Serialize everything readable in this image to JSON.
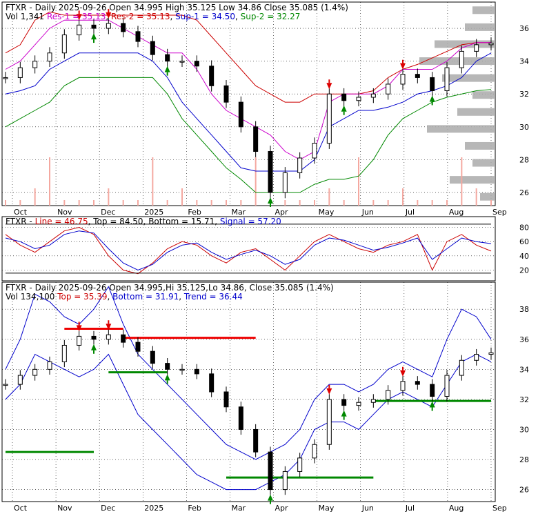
{
  "header": {
    "main_line1": {
      "ticker": "FTXR",
      "desc": "Daily 2025-09-26 Open 34.995  High 35.125  Low 34.86  Close 35.085 (1.4%)"
    },
    "main_line2": {
      "vol": "Vol 1,341",
      "res1": "Res-1 = 35.13",
      "res2": "Res-2 = 35.13",
      "sup1": "Sup-1 = 34.50",
      "sup2": "Sup-2 = 32.27"
    },
    "osc_line": {
      "ticker": "FTXR",
      "line": "Line = 46.75",
      "top": "Top = 84.50",
      "bottom": "Bottom = 15.71",
      "signal": "Signal = 57.20"
    },
    "bot_line1": {
      "ticker": "FTXR",
      "desc": "Daily 2025-09-26 Open 34.995,Hi 35.125,Lo 34.86, Close 35.085 (1.4%)"
    },
    "bot_line2": {
      "vol": "Vol 134,100",
      "top": "Top = 35.39",
      "bottom": "Bottom = 31.91",
      "trend": "Trend = 36.44"
    }
  },
  "colors": {
    "res1": "#cc00cc",
    "res2": "#cc0000",
    "sup1": "#0000cc",
    "sup2": "#008800",
    "line": "#cc0000",
    "signal": "#0000cc",
    "up_arrow": "#008800",
    "down_arrow": "#dd0000",
    "volume": "#f4a8a0",
    "profile": "#aaaaaa",
    "grid": "#000000"
  },
  "chart_data": [
    {
      "type": "candlestick",
      "panel": "price",
      "title": "FTXR - Daily 2025-09-26",
      "x_labels": [
        "Oct",
        "Nov",
        "Dec",
        "2025",
        "Feb",
        "Mar",
        "Apr",
        "May",
        "Jun",
        "Jul",
        "Aug",
        "Sep"
      ],
      "y_ticks": [
        26,
        28,
        30,
        32,
        34,
        36
      ],
      "ylim": [
        25.2,
        37.6
      ],
      "close": [
        33.0,
        33.6,
        34.0,
        34.5,
        35.6,
        36.2,
        36.0,
        36.3,
        35.8,
        35.2,
        34.4,
        34.0,
        34.0,
        33.7,
        32.5,
        31.5,
        30.0,
        28.5,
        26.0,
        27.2,
        28.1,
        29.0,
        32.0,
        31.6,
        31.8,
        32.0,
        32.6,
        33.2,
        33.0,
        32.2,
        33.6,
        34.6,
        35.0,
        35.1
      ],
      "res1": [
        33.5,
        34.0,
        35.0,
        36.0,
        36.5,
        36.5,
        36.5,
        36.5,
        36.0,
        35.5,
        35.0,
        34.5,
        34.5,
        33.5,
        32.0,
        31.0,
        30.5,
        30.0,
        29.5,
        28.5,
        28.0,
        28.5,
        31.5,
        32.0,
        32.0,
        32.0,
        32.5,
        33.5,
        33.5,
        33.5,
        34.0,
        34.8,
        35.13,
        35.13
      ],
      "res2": [
        34.5,
        35.0,
        36.5,
        37.0,
        36.8,
        36.8,
        36.8,
        36.8,
        36.8,
        36.8,
        36.8,
        36.8,
        36.8,
        36.5,
        35.5,
        34.5,
        33.5,
        32.5,
        32.0,
        31.5,
        31.5,
        32.0,
        32.0,
        32.0,
        32.0,
        32.2,
        33.0,
        33.5,
        33.8,
        34.2,
        34.6,
        35.0,
        35.13,
        35.13
      ],
      "sup1": [
        32.0,
        32.2,
        32.5,
        33.5,
        34.0,
        34.5,
        34.5,
        34.5,
        34.5,
        34.5,
        34.0,
        33.0,
        31.5,
        30.5,
        29.5,
        28.5,
        27.5,
        27.3,
        27.3,
        27.3,
        27.3,
        28.0,
        30.0,
        30.5,
        31.0,
        31.0,
        31.2,
        31.5,
        32.0,
        32.2,
        32.5,
        33.0,
        34.0,
        34.5
      ],
      "sup2": [
        30.0,
        30.5,
        31.0,
        31.5,
        32.5,
        33.0,
        33.0,
        33.0,
        33.0,
        33.0,
        33.0,
        32.0,
        30.5,
        29.5,
        28.5,
        27.5,
        26.8,
        26.0,
        26.0,
        26.0,
        26.0,
        26.5,
        26.8,
        26.8,
        27.0,
        28.0,
        29.5,
        30.5,
        31.0,
        31.5,
        31.8,
        32.0,
        32.2,
        32.27
      ]
    },
    {
      "type": "line",
      "panel": "oscillator",
      "y_ticks": [
        20,
        40,
        60,
        80
      ],
      "ylim": [
        5,
        95
      ],
      "series": [
        {
          "name": "Line",
          "values": [
            70,
            55,
            45,
            60,
            75,
            80,
            70,
            40,
            20,
            15,
            30,
            50,
            60,
            55,
            40,
            30,
            45,
            50,
            35,
            20,
            40,
            60,
            70,
            60,
            50,
            45,
            55,
            60,
            70,
            20,
            60,
            70,
            55,
            46.75
          ]
        },
        {
          "name": "Signal",
          "values": [
            65,
            60,
            50,
            55,
            70,
            75,
            72,
            50,
            30,
            20,
            28,
            45,
            55,
            58,
            45,
            35,
            42,
            48,
            40,
            28,
            35,
            55,
            65,
            62,
            55,
            48,
            52,
            58,
            65,
            35,
            50,
            65,
            60,
            57.2
          ]
        },
        {
          "name": "Top",
          "values": [
            84.5,
            84.5,
            84.5,
            84.5,
            84.5,
            84.5,
            84.5,
            84.5,
            84.5,
            84.5,
            84.5,
            84.5,
            84.5,
            84.5,
            84.5,
            84.5,
            84.5,
            84.5,
            84.5,
            84.5,
            84.5,
            84.5,
            84.5,
            84.5,
            84.5,
            84.5,
            84.5,
            84.5,
            84.5,
            84.5,
            84.5,
            84.5,
            84.5,
            84.5
          ]
        },
        {
          "name": "Bottom",
          "values": [
            15.71,
            15.71,
            15.71,
            15.71,
            15.71,
            15.71,
            15.71,
            15.71,
            15.71,
            15.71,
            15.71,
            15.71,
            15.71,
            15.71,
            15.71,
            15.71,
            15.71,
            15.71,
            15.71,
            15.71,
            15.71,
            15.71,
            15.71,
            15.71,
            15.71,
            15.71,
            15.71,
            15.71,
            15.71,
            15.71,
            15.71,
            15.71,
            15.71,
            15.71
          ]
        }
      ]
    },
    {
      "type": "candlestick",
      "panel": "price-trend",
      "x_labels": [
        "Oct",
        "Nov",
        "Dec",
        "2025",
        "Feb",
        "Mar",
        "Apr",
        "May",
        "Jun",
        "Jul",
        "Aug",
        "Sep"
      ],
      "y_ticks": [
        26,
        28,
        30,
        32,
        34,
        36,
        38
      ],
      "ylim": [
        25.2,
        39.8
      ],
      "close": [
        33.0,
        33.6,
        34.0,
        34.5,
        35.6,
        36.2,
        36.0,
        36.3,
        35.8,
        35.2,
        34.4,
        34.0,
        34.0,
        33.7,
        32.5,
        31.5,
        30.0,
        28.5,
        26.0,
        27.2,
        28.1,
        29.0,
        32.0,
        31.6,
        31.8,
        32.0,
        32.6,
        33.2,
        33.0,
        32.2,
        33.6,
        34.6,
        35.0,
        35.1
      ],
      "upper_band": [
        34.0,
        36.0,
        39.0,
        38.5,
        37.5,
        37.0,
        38.0,
        39.5,
        37.0,
        35.0,
        34.0,
        33.0,
        32.0,
        31.0,
        30.0,
        29.0,
        28.5,
        28.0,
        28.5,
        29.0,
        30.0,
        32.0,
        33.0,
        33.0,
        32.5,
        33.0,
        34.0,
        34.5,
        34.0,
        33.5,
        36.0,
        38.0,
        37.5,
        36.0
      ],
      "lower_band": [
        32.0,
        33.0,
        35.0,
        34.5,
        34.0,
        33.5,
        34.0,
        35.0,
        33.0,
        31.0,
        30.0,
        29.0,
        28.0,
        27.0,
        26.5,
        26.0,
        26.0,
        26.0,
        26.5,
        27.0,
        28.0,
        30.0,
        30.5,
        30.5,
        30.0,
        31.0,
        32.0,
        32.5,
        32.0,
        31.5,
        33.0,
        34.5,
        35.0,
        34.5
      ],
      "trend_lines": [
        {
          "color": "red",
          "value": 36.7,
          "from": 4,
          "to": 8
        },
        {
          "color": "red",
          "value": 36.1,
          "from": 8,
          "to": 17
        },
        {
          "color": "green",
          "value": 28.5,
          "from": 0,
          "to": 6
        },
        {
          "color": "green",
          "value": 33.8,
          "from": 7,
          "to": 11
        },
        {
          "color": "green",
          "value": 26.8,
          "from": 15,
          "to": 25
        },
        {
          "color": "green",
          "value": 31.9,
          "from": 25,
          "to": 33
        }
      ]
    }
  ]
}
